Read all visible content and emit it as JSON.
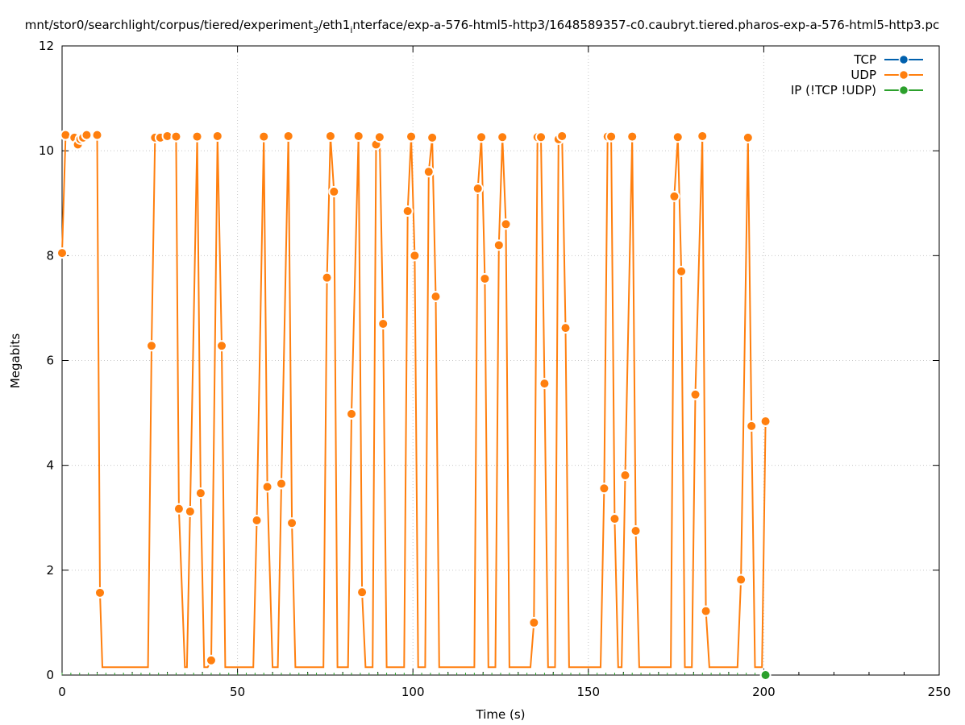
{
  "chart_data": {
    "type": "line",
    "title": "mnt/stor0/searchlight/corpus/tiered/experiment",
    "title_sub1": "3",
    "title_mid": "/eth1",
    "title_sub2": "i",
    "title_end": "nterface/exp-a-576-html5-http3/1648589357-c0.caubryt.tiered.pharos-exp-a-576-html5-http3.pc",
    "xlabel": "Time (s)",
    "ylabel": "Megabits",
    "xlim": [
      0,
      250
    ],
    "ylim": [
      0,
      12
    ],
    "xticks": [
      0,
      50,
      100,
      150,
      200,
      250
    ],
    "yticks": [
      0,
      2,
      4,
      6,
      8,
      10,
      12
    ],
    "grid": true,
    "legend_position": "top-right",
    "legend": [
      {
        "name": "TCP",
        "color": "#0060ad"
      },
      {
        "name": "UDP",
        "color": "#ff7f0e"
      },
      {
        "name": "IP (!TCP  !UDP)",
        "color": "#2ca02c"
      }
    ],
    "series": [
      {
        "name": "UDP",
        "color": "#ff7f0e",
        "points": [
          [
            0,
            8.05
          ],
          [
            1,
            10.3
          ],
          [
            3.5,
            10.25
          ],
          [
            4.5,
            10.12
          ],
          [
            5.2,
            10.22
          ],
          [
            6,
            10.25
          ],
          [
            7,
            10.3
          ],
          [
            10,
            10.3
          ],
          [
            10.8,
            1.57
          ],
          [
            11.5,
            0.15
          ],
          [
            24.5,
            0.15
          ],
          [
            25.5,
            6.28
          ],
          [
            26.5,
            10.25
          ],
          [
            28,
            10.25
          ],
          [
            30,
            10.28
          ],
          [
            32.5,
            10.27
          ],
          [
            33.3,
            3.17
          ],
          [
            35,
            0.15
          ],
          [
            35.6,
            0.15
          ],
          [
            36.5,
            3.12
          ],
          [
            38.5,
            10.27
          ],
          [
            39.5,
            3.47
          ],
          [
            40.5,
            0.15
          ],
          [
            41.5,
            0.15
          ],
          [
            42.5,
            0.28
          ],
          [
            44.3,
            10.28
          ],
          [
            45.5,
            6.28
          ],
          [
            46.5,
            0.15
          ],
          [
            54.5,
            0.15
          ],
          [
            55.5,
            2.95
          ],
          [
            57.5,
            10.27
          ],
          [
            58.5,
            3.59
          ],
          [
            60,
            0.15
          ],
          [
            61.5,
            0.15
          ],
          [
            62.5,
            3.65
          ],
          [
            64.5,
            10.28
          ],
          [
            65.5,
            2.9
          ],
          [
            66.5,
            0.15
          ],
          [
            74.5,
            0.15
          ],
          [
            75.5,
            7.58
          ],
          [
            76.5,
            10.28
          ],
          [
            77.5,
            9.22
          ],
          [
            78.5,
            0.15
          ],
          [
            81.5,
            0.15
          ],
          [
            82.5,
            4.98
          ],
          [
            84.5,
            10.28
          ],
          [
            85.5,
            1.58
          ],
          [
            86.5,
            0.15
          ],
          [
            88.5,
            0.15
          ],
          [
            89.5,
            10.12
          ],
          [
            90.5,
            10.26
          ],
          [
            91.5,
            6.7
          ],
          [
            92.5,
            0.15
          ],
          [
            97.5,
            0.15
          ],
          [
            98.5,
            8.85
          ],
          [
            99.5,
            10.27
          ],
          [
            100.5,
            8.0
          ],
          [
            101.5,
            0.15
          ],
          [
            103.5,
            0.15
          ],
          [
            104.5,
            9.6
          ],
          [
            105.5,
            10.25
          ],
          [
            106.5,
            7.22
          ],
          [
            107.5,
            0.15
          ],
          [
            117.5,
            0.15
          ],
          [
            118.5,
            9.28
          ],
          [
            119.5,
            10.26
          ],
          [
            120.5,
            7.56
          ],
          [
            121.5,
            0.15
          ],
          [
            123.5,
            0.15
          ],
          [
            124.5,
            8.2
          ],
          [
            125.5,
            10.26
          ],
          [
            126.5,
            8.6
          ],
          [
            127.5,
            0.15
          ],
          [
            133.5,
            0.15
          ],
          [
            134.5,
            1.0
          ],
          [
            135.5,
            10.26
          ],
          [
            136.5,
            10.26
          ],
          [
            137.5,
            5.56
          ],
          [
            138.5,
            0.15
          ],
          [
            140.5,
            0.15
          ],
          [
            141.5,
            10.22
          ],
          [
            142.5,
            10.28
          ],
          [
            143.5,
            6.62
          ],
          [
            144.5,
            0.15
          ],
          [
            153.5,
            0.15
          ],
          [
            154.5,
            3.56
          ],
          [
            155.5,
            10.27
          ],
          [
            156.5,
            10.27
          ],
          [
            157.5,
            2.98
          ],
          [
            158.5,
            0.15
          ],
          [
            159.5,
            0.15
          ],
          [
            160.5,
            3.81
          ],
          [
            162.5,
            10.27
          ],
          [
            163.5,
            2.75
          ],
          [
            164.5,
            0.15
          ],
          [
            173.5,
            0.15
          ],
          [
            174.5,
            9.13
          ],
          [
            175.5,
            10.26
          ],
          [
            176.5,
            7.7
          ],
          [
            177.5,
            0.15
          ],
          [
            179.5,
            0.15
          ],
          [
            180.5,
            5.35
          ],
          [
            182.5,
            10.28
          ],
          [
            183.5,
            1.22
          ],
          [
            184.5,
            0.15
          ],
          [
            192.5,
            0.15
          ],
          [
            193.5,
            1.82
          ],
          [
            195.5,
            10.25
          ],
          [
            196.5,
            4.75
          ],
          [
            197.5,
            0.15
          ],
          [
            199.5,
            0.15
          ],
          [
            200.5,
            4.84
          ]
        ]
      },
      {
        "name": "IP (!TCP  !UDP)",
        "color": "#2ca02c",
        "points": [
          [
            200.5,
            0
          ]
        ]
      }
    ]
  }
}
